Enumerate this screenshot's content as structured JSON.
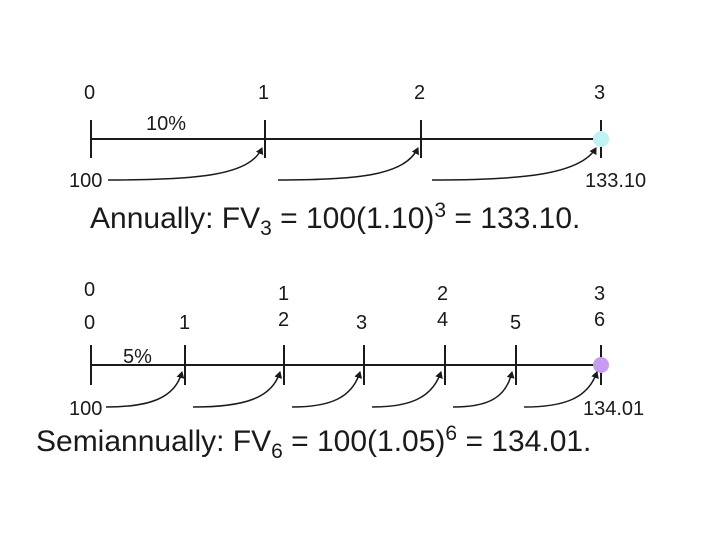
{
  "annual": {
    "periods": [
      "0",
      "1",
      "2",
      "3"
    ],
    "rate": "10%",
    "pv": "100",
    "fv": "133.10",
    "formula": {
      "prefix": "Annually:  FV",
      "sub": "3",
      "mid": " = 100(1.10)",
      "sup": "3",
      "suffix": " = 133.10."
    }
  },
  "semiannual": {
    "years": [
      "0",
      "1",
      "2",
      "3"
    ],
    "periods": [
      "0",
      "1",
      "2",
      "3",
      "4",
      "5",
      "6"
    ],
    "rate": "5%",
    "pv": "100",
    "fv": "134.01",
    "formula": {
      "prefix": "Semiannually:  FV",
      "sub": "6",
      "mid": " = 100(1.05)",
      "sup": "6",
      "suffix": " = 134.01."
    }
  },
  "colors": {
    "text": "#1a1a1a",
    "annual_endpoint": "#bff3f3",
    "semiannual_endpoint": "#c79cf0"
  }
}
